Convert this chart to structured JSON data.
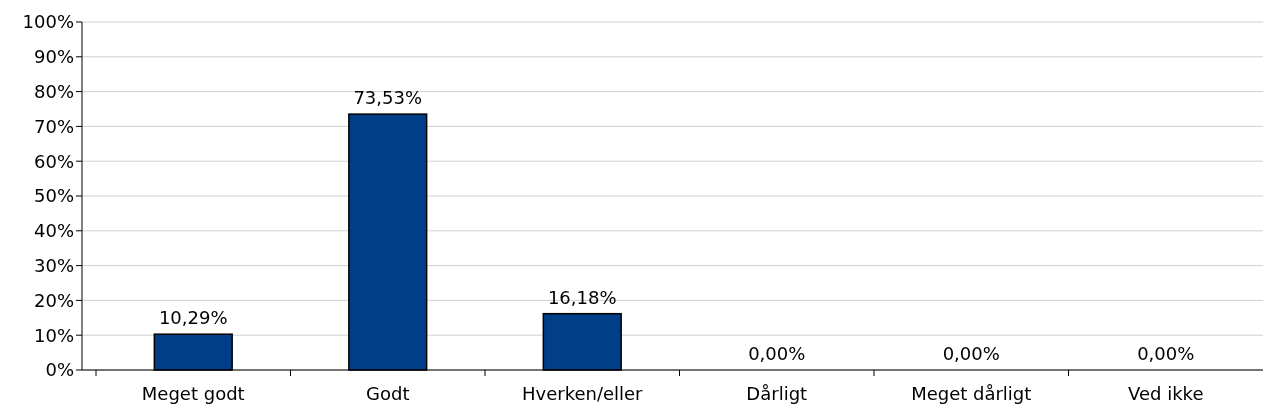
{
  "chart_data": {
    "type": "bar",
    "categories": [
      "Meget godt",
      "Godt",
      "Hverken/eller",
      "Dårligt",
      "Meget dårligt",
      "Ved ikke"
    ],
    "values": [
      10.29,
      73.53,
      16.18,
      0,
      0,
      0
    ],
    "value_labels": [
      "10,29%",
      "73,53%",
      "16,18%",
      "0,00%",
      "0,00%",
      "0,00%"
    ],
    "color": "#003f87",
    "ylim": [
      0,
      100
    ],
    "yticks": [
      {
        "value": 0,
        "label": "0%"
      },
      {
        "value": 10,
        "label": "10%"
      },
      {
        "value": 20,
        "label": "20%"
      },
      {
        "value": 30,
        "label": "30%"
      },
      {
        "value": 40,
        "label": "40%"
      },
      {
        "value": 50,
        "label": "50%"
      },
      {
        "value": 60,
        "label": "60%"
      },
      {
        "value": 70,
        "label": "70%"
      },
      {
        "value": 80,
        "label": "80%"
      },
      {
        "value": 90,
        "label": "90%"
      },
      {
        "value": 100,
        "label": "100%"
      }
    ],
    "grid": "y"
  }
}
